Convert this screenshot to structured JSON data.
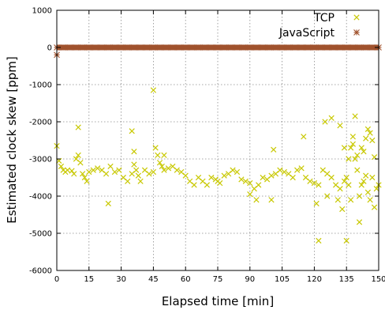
{
  "chart_data": {
    "type": "scatter",
    "xlabel": "Elapsed time [min]",
    "ylabel": "Estimated clock skew [ppm]",
    "xlim": [
      0,
      150
    ],
    "ylim": [
      -6000,
      1000
    ],
    "xticks": [
      "0",
      "15",
      "30",
      "45",
      "60",
      "75",
      "90",
      "105",
      "120",
      "135",
      "150"
    ],
    "yticks": [
      "1000",
      "0",
      "-1000",
      "-2000",
      "-3000",
      "-4000",
      "-5000",
      "-6000"
    ],
    "grid": true,
    "legend_position": "top-right",
    "series": [
      {
        "name": "TCP",
        "marker": "x",
        "color": "#c8c800",
        "x": [
          0,
          1,
          2,
          3,
          4,
          5,
          7,
          8,
          9,
          10,
          11,
          12,
          13,
          14,
          15,
          17,
          19,
          21,
          23,
          25,
          27,
          29,
          31,
          33,
          35,
          36,
          37,
          38,
          39,
          41,
          43,
          45,
          46,
          47,
          48,
          49,
          50,
          52,
          54,
          56,
          58,
          60,
          62,
          64,
          66,
          68,
          70,
          72,
          74,
          75,
          76,
          78,
          80,
          82,
          84,
          86,
          88,
          90,
          92,
          93,
          94,
          96,
          98,
          100,
          101,
          102,
          104,
          106,
          108,
          110,
          112,
          114,
          116,
          118,
          120,
          122,
          124,
          126,
          128,
          130,
          132,
          134,
          135,
          136,
          137,
          138,
          139,
          140,
          141,
          142,
          143,
          144,
          145,
          146,
          147,
          148,
          149,
          150,
          10,
          35,
          45,
          36,
          24,
          50,
          90,
          100,
          115,
          125,
          128,
          132,
          134,
          138,
          140,
          143,
          145,
          147,
          136,
          139,
          142,
          144,
          146,
          148,
          121,
          126,
          131,
          133,
          137,
          141,
          122,
          135
        ],
        "y": [
          -2650,
          -3050,
          -3200,
          -3300,
          -3350,
          -3300,
          -3320,
          -3400,
          -3000,
          -2900,
          -3100,
          -3400,
          -3500,
          -3600,
          -3350,
          -3300,
          -3250,
          -3300,
          -3400,
          -3200,
          -3350,
          -3300,
          -3500,
          -3600,
          -3400,
          -3150,
          -3300,
          -3450,
          -3600,
          -3300,
          -3400,
          -3350,
          -2700,
          -2900,
          -3100,
          -3200,
          -3300,
          -3250,
          -3200,
          -3300,
          -3350,
          -3450,
          -3600,
          -3700,
          -3500,
          -3600,
          -3700,
          -3500,
          -3550,
          -3600,
          -3650,
          -3450,
          -3400,
          -3300,
          -3350,
          -3550,
          -3600,
          -3650,
          -3800,
          -4100,
          -3700,
          -3500,
          -3550,
          -3450,
          -2750,
          -3400,
          -3300,
          -3350,
          -3400,
          -3500,
          -3300,
          -3250,
          -3500,
          -3600,
          -3650,
          -3700,
          -3300,
          -3400,
          -3500,
          -3700,
          -3800,
          -3600,
          -3500,
          -3700,
          -2700,
          -2400,
          -3000,
          -3300,
          -4000,
          -3700,
          -3600,
          -3450,
          -3900,
          -4100,
          -3500,
          -4300,
          -3800,
          -3700,
          -2150,
          -2250,
          -1150,
          -2800,
          -4200,
          -2900,
          -3950,
          -4100,
          -2400,
          -2000,
          -1900,
          -2100,
          -2700,
          -2600,
          -2900,
          -2800,
          -2200,
          -2500,
          -3000,
          -1850,
          -2700,
          -2450,
          -2300,
          -2950,
          -4200,
          -4000,
          -4100,
          -4350,
          -4100,
          -4700,
          -5200,
          -5200
        ]
      },
      {
        "name": "JavaScript",
        "marker": "star",
        "color": "#a0522d",
        "x": [
          0,
          3,
          6,
          9,
          12,
          15,
          18,
          21,
          24,
          27,
          30,
          33,
          36,
          39,
          42,
          45,
          48,
          51,
          54,
          57,
          60,
          63,
          66,
          69,
          72,
          75,
          78,
          81,
          84,
          87,
          90,
          93,
          96,
          99,
          102,
          105,
          108,
          111,
          114,
          117,
          120,
          123,
          126,
          129,
          132,
          135,
          138,
          141,
          144,
          147,
          150,
          0
        ],
        "y": [
          0,
          0,
          0,
          0,
          0,
          0,
          0,
          0,
          0,
          0,
          0,
          0,
          0,
          0,
          0,
          0,
          0,
          0,
          0,
          0,
          0,
          0,
          0,
          0,
          0,
          0,
          0,
          0,
          0,
          0,
          0,
          0,
          0,
          0,
          0,
          0,
          0,
          0,
          0,
          0,
          0,
          0,
          0,
          0,
          0,
          0,
          0,
          0,
          0,
          0,
          0,
          -200
        ]
      }
    ]
  }
}
